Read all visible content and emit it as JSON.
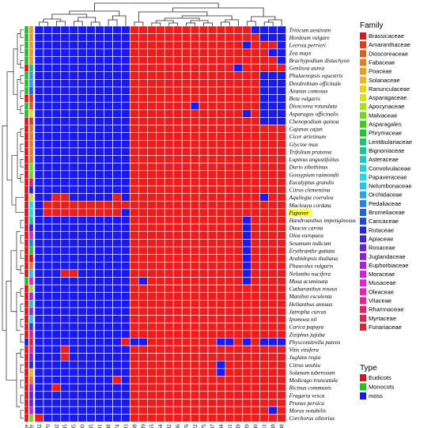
{
  "chart_data": {
    "type": "heatmap",
    "colors": {
      "present": "#ee1c1c",
      "absent": "#1a1af0",
      "grid": "#ffffff"
    },
    "columns": [
      "K13382",
      "K21070",
      "K21692",
      "K13395",
      "K13395",
      "K21580",
      "K22095",
      "K13391",
      "K13398",
      "K00274",
      "K01593",
      "K21208",
      "K22089",
      "K14455",
      "K14454",
      "K01592",
      "K00836",
      "K00276",
      "K00422",
      "K14975",
      "K22097",
      "K13394",
      "K00811",
      "K15849",
      "K13389",
      "K13390",
      "K21311",
      "K21649",
      "K22098"
    ],
    "rows": [
      {
        "species": "Triticum aestivum",
        "type": "Monocots",
        "family": "Poaceae",
        "cells": "00000000000111111111111110000"
      },
      {
        "species": "Hordeum vulgare",
        "type": "Monocots",
        "family": "Poaceae",
        "cells": "00000000000111111111111111000"
      },
      {
        "species": "Leersia perrieri",
        "type": "Monocots",
        "family": "Poaceae",
        "cells": "00000000000111111111111101110"
      },
      {
        "species": "Zea mays",
        "type": "Monocots",
        "family": "Poaceae",
        "cells": "00000000000111111111111111100"
      },
      {
        "species": "Brachypodium distachyon",
        "type": "Monocots",
        "family": "Poaceae",
        "cells": "00000000000111111111111111110"
      },
      {
        "species": "Genlisea aurea",
        "type": "Eudicots",
        "family": "Lentibulariaceae",
        "cells": "00000000000111111111111011111"
      },
      {
        "species": "Phalaenopsis equestris",
        "type": "Monocots",
        "family": "Orchidaceae",
        "cells": "00000000000111111111111111000"
      },
      {
        "species": "Dendrobium officinale",
        "type": "Monocots",
        "family": "Orchidaceae",
        "cells": "00000000000111111111111111000"
      },
      {
        "species": "Ananas comosus",
        "type": "Monocots",
        "family": "Bromeliaceae",
        "cells": "00000000000111111111111111000"
      },
      {
        "species": "Beta vulgaris",
        "type": "Eudicots",
        "family": "Amaranthaceae",
        "cells": "00000000000111111111111111000"
      },
      {
        "species": "Dioscorea rotundata",
        "type": "Monocots",
        "family": "Dioscoreaceae",
        "cells": "00000000000111111101111111000"
      },
      {
        "species": "Asparagus officinalis",
        "type": "Monocots",
        "family": "Asparagaceae",
        "cells": "00000000000111111111111101000"
      },
      {
        "species": "Chenopodium quinoa",
        "type": "Eudicots",
        "family": "Amaranthaceae",
        "cells": "00000000000111111111111111000"
      },
      {
        "species": "Cajanus cajan",
        "type": "Eudicots",
        "family": "Fabaceae",
        "cells": "00000000000111111111111111111"
      },
      {
        "species": "Cicer arietinum",
        "type": "Eudicots",
        "family": "Fabaceae",
        "cells": "00000000000111111111111111111"
      },
      {
        "species": "Glycine max",
        "type": "Eudicots",
        "family": "Fabaceae",
        "cells": "00000000000111111111111111111"
      },
      {
        "species": "Trifolium pratense",
        "type": "Eudicots",
        "family": "Fabaceae",
        "cells": "00000000000111111111111111111"
      },
      {
        "species": "Lupinus angustifolius",
        "type": "Eudicots",
        "family": "Fabaceae",
        "cells": "00000000000111111111111111111"
      },
      {
        "species": "Durio zibethinus",
        "type": "Eudicots",
        "family": "Malvaceae",
        "cells": "00000000000111111111111111111"
      },
      {
        "species": "Gossypium raimondii",
        "type": "Eudicots",
        "family": "Malvaceae",
        "cells": "00000000000111111111111111111"
      },
      {
        "species": "Eucalyptus grandis",
        "type": "Eudicots",
        "family": "Myrtaceae",
        "cells": "00000000000111111111111111111"
      },
      {
        "species": "Citrus clementina",
        "type": "Eudicots",
        "family": "Rutaceae",
        "cells": "00000000000111111111111111111"
      },
      {
        "species": "Aquilegia coerulea",
        "type": "Eudicots",
        "family": "Ranunculaceae",
        "cells": "00110000010111111111111111011"
      },
      {
        "species": "Macleaya cordata",
        "type": "Eudicots",
        "family": "Papaveraceae",
        "cells": "01111111111111111111111111111"
      },
      {
        "species": "Papaver",
        "type": "Eudicots",
        "family": "Papaveraceae",
        "cells": "01111111110111111111111111111",
        "highlight": true
      },
      {
        "species": "Handroanthus impetiginosus",
        "type": "Eudicots",
        "family": "Bignoniaceae",
        "cells": "00000000000111111111111101111"
      },
      {
        "species": "Daucus carota",
        "type": "Eudicots",
        "family": "Apiaceae",
        "cells": "00000000000111111111111101111"
      },
      {
        "species": "Olea europaea",
        "type": "Eudicots",
        "family": "Oleaceae",
        "cells": "00000000000111111111111101111"
      },
      {
        "species": "Sesamum indicum",
        "type": "Eudicots",
        "family": "Pedaliaceae",
        "cells": "00000000000111111111111101111"
      },
      {
        "species": "Erythranthe guttata",
        "type": "Eudicots",
        "family": "Phrymaceae",
        "cells": "00000000000111111111111101111"
      },
      {
        "species": "Arabidopsis thaliana",
        "type": "Eudicots",
        "family": "Brassicaceae",
        "cells": "00000000000111111111111101111"
      },
      {
        "species": "Phaseolus vulgaris",
        "type": "Eudicots",
        "family": "Fabaceae",
        "cells": "00000000000111111111111101111"
      },
      {
        "species": "Nelumbo nucifera",
        "type": "Eudicots",
        "family": "Nelumbonaceae",
        "cells": "00011000000111111111111101111"
      },
      {
        "species": "Musa acuminata",
        "type": "Monocots",
        "family": "Musaceae",
        "cells": "00000000000101111111111101111"
      },
      {
        "species": "Catharanthus roseus",
        "type": "Eudicots",
        "family": "Apocynaceae",
        "cells": "00000000000111111111111111111"
      },
      {
        "species": "Manihot esculenta",
        "type": "Eudicots",
        "family": "Euphorbiaceae",
        "cells": "00000000000111111111111111111"
      },
      {
        "species": "Helianthus annuus",
        "type": "Eudicots",
        "family": "Asteraceae",
        "cells": "00000000000111111111111111111"
      },
      {
        "species": "Jatropha curcas",
        "type": "Eudicots",
        "family": "Euphorbiaceae",
        "cells": "00000000000111111111111111111"
      },
      {
        "species": "Ipomoea nil",
        "type": "Eudicots",
        "family": "Convolvulaceae",
        "cells": "00000000000111111111111111111"
      },
      {
        "species": "Carica papaya",
        "type": "Eudicots",
        "family": "Caricaceae",
        "cells": "00000000000111111111111111111"
      },
      {
        "species": "Ziziphus jujuba",
        "type": "Eudicots",
        "family": "Rhamnaceae",
        "cells": "00000000000111111111111111111"
      },
      {
        "species": "Physcomitrella patens",
        "type": "moss",
        "family": "Funariaceae",
        "cells": "00000000001001111111100101000"
      },
      {
        "species": "Vitis vinifera",
        "type": "Eudicots",
        "family": "Vitaceae",
        "cells": "00010000000111111111111111111"
      },
      {
        "species": "Juglans regia",
        "type": "Eudicots",
        "family": "Juglandaceae",
        "cells": "00010000000111111111111111111"
      },
      {
        "species": "Citrus unshiu",
        "type": "Eudicots",
        "family": "Rutaceae",
        "cells": "00000000000111111111101111111"
      },
      {
        "species": "Solanum tuberosum",
        "type": "Eudicots",
        "family": "Solanaceae",
        "cells": "00000000000111111111101111111"
      },
      {
        "species": "Medicago truncatula",
        "type": "Eudicots",
        "family": "Fabaceae",
        "cells": "00000000010111111111111111111"
      },
      {
        "species": "Ricinus communis",
        "type": "Eudicots",
        "family": "Euphorbiaceae",
        "cells": "00100000000111111111111111111"
      },
      {
        "species": "Fragaria vesca",
        "type": "Eudicots",
        "family": "Rosaceae",
        "cells": "00000000000111111111111111111"
      },
      {
        "species": "Prunus persica",
        "type": "Eudicots",
        "family": "Rosaceae",
        "cells": "00000000000111111111111111111"
      },
      {
        "species": "Morus notabilis",
        "type": "Eudicots",
        "family": "Moraceae",
        "cells": "00000000000111111111111111101"
      },
      {
        "species": "Corchorus olitorius",
        "type": "Eudicots",
        "family": "Malvaceae",
        "cells": "10000000000111111111111111111"
      }
    ],
    "family_legend": {
      "title": "Family",
      "items": [
        {
          "label": "Brassicaceae",
          "color": "#e8111b"
        },
        {
          "label": "Amaranthaceae",
          "color": "#e33a1a"
        },
        {
          "label": "Dioscoreaceae",
          "color": "#e65a1c"
        },
        {
          "label": "Fabaceae",
          "color": "#ea7a1e"
        },
        {
          "label": "Poaceae",
          "color": "#f09a20"
        },
        {
          "label": "Solanaceae",
          "color": "#f3b51f"
        },
        {
          "label": "Ranunculaceae",
          "color": "#efd11a"
        },
        {
          "label": "Asparagaceae",
          "color": "#d8e21a"
        },
        {
          "label": "Apocynaceae",
          "color": "#a8e01a"
        },
        {
          "label": "Malvaceae",
          "color": "#6fd81b"
        },
        {
          "label": "Asparagales",
          "color": "#3ccc1d"
        },
        {
          "label": "Phrymaceae",
          "color": "#1fc534"
        },
        {
          "label": "Lentibulariaceae",
          "color": "#1ec466"
        },
        {
          "label": "Bignoniaceae",
          "color": "#1ec494"
        },
        {
          "label": "Asteraceae",
          "color": "#1ec8bd"
        },
        {
          "label": "Convolvulaceae",
          "color": "#1ed2d8"
        },
        {
          "label": "Papaveraceae",
          "color": "#1ed8ec"
        },
        {
          "label": "Nelumbonaceae",
          "color": "#1ec6f4"
        },
        {
          "label": "Orchidaceae",
          "color": "#1ea5f3"
        },
        {
          "label": "Pedaliaceae",
          "color": "#1e84ef"
        },
        {
          "label": "Bromeliaceae",
          "color": "#1e62ea"
        },
        {
          "label": "Caricaceae",
          "color": "#1e44e6"
        },
        {
          "label": "Rutaceae",
          "color": "#2426e2"
        },
        {
          "label": "Apiaceae",
          "color": "#4520e0"
        },
        {
          "label": "Rosaceae",
          "color": "#6a1ee0"
        },
        {
          "label": "Juglandaceae",
          "color": "#8e1ee0"
        },
        {
          "label": "Euphorbiaceae",
          "color": "#b01ee2"
        },
        {
          "label": "Moraceae",
          "color": "#d01ee4"
        },
        {
          "label": "Musaceae",
          "color": "#e81ed8"
        },
        {
          "label": "Oleaceae",
          "color": "#ee1eb8"
        },
        {
          "label": "Vitaceae",
          "color": "#ee1e96"
        },
        {
          "label": "Rhamnaceae",
          "color": "#ec1e74"
        },
        {
          "label": "Myrtaceae",
          "color": "#ea1e52"
        },
        {
          "label": "Funariaceae",
          "color": "#e81e32"
        }
      ]
    },
    "type_legend": {
      "title": "Type",
      "items": [
        {
          "label": "Eudicots",
          "color": "#e8111b"
        },
        {
          "label": "Monocots",
          "color": "#1ec51e"
        },
        {
          "label": "moss",
          "color": "#1a1af0"
        }
      ]
    },
    "annotation_track_labels": [
      "Type",
      "Family"
    ]
  }
}
